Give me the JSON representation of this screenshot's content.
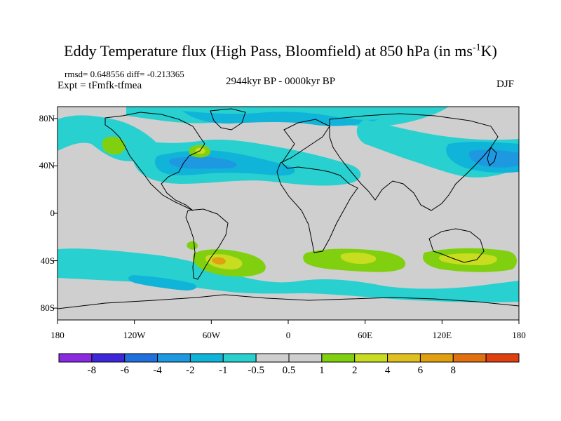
{
  "title": {
    "main": "Eddy Temperature flux (High Pass, Bloomfield) at 850 hPa (in ms",
    "sup": "-1",
    "tail": "K)"
  },
  "stats": "rmsd= 0.648556 diff= -0.213365",
  "experiment": "Expt = tFmfk-tfmea",
  "period": "2944kyr BP - 0000kyr BP",
  "season": "DJF",
  "map": {
    "projection": "cylindrical-equidistant",
    "lon_range": [
      -180,
      180
    ],
    "lat_range": [
      -90,
      90
    ],
    "lat_labels": [
      {
        "lat": 80,
        "label": "80N"
      },
      {
        "lat": 40,
        "label": "40N"
      },
      {
        "lat": 0,
        "label": "0"
      },
      {
        "lat": -40,
        "label": "40S"
      },
      {
        "lat": -80,
        "label": "80S"
      }
    ],
    "lon_labels": [
      {
        "lon": -180,
        "label": "180"
      },
      {
        "lon": -120,
        "label": "120W"
      },
      {
        "lon": -60,
        "label": "60W"
      },
      {
        "lon": 0,
        "label": "0"
      },
      {
        "lon": 60,
        "label": "60E"
      },
      {
        "lon": 120,
        "label": "120E"
      },
      {
        "lon": 180,
        "label": "180"
      }
    ]
  },
  "colorbar": {
    "colors": [
      "#8a2be2",
      "#3c28d8",
      "#1f70dc",
      "#1e98e0",
      "#10b4d8",
      "#28d0d0",
      "#cfcfcf",
      "#cfcfcf",
      "#80d010",
      "#c8dc20",
      "#e0c020",
      "#e0a010",
      "#e07010",
      "#e04010"
    ],
    "labels": [
      "-8",
      "-6",
      "-4",
      "-2",
      "-1",
      "-0.5",
      "0.5",
      "1",
      "2",
      "4",
      "6",
      "8"
    ]
  }
}
